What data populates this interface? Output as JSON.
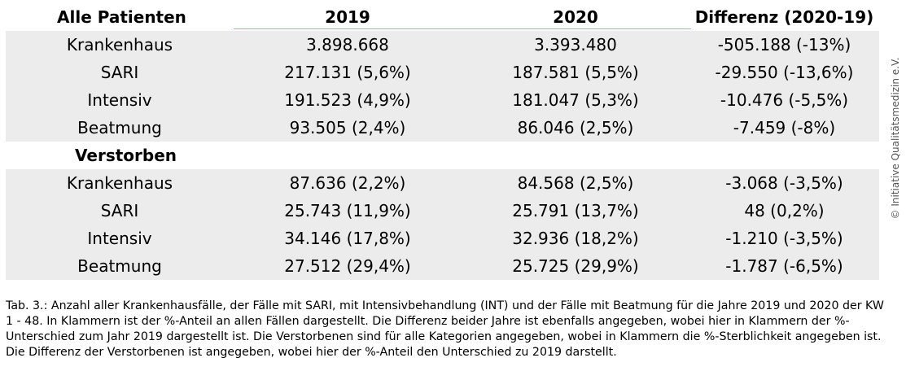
{
  "table": {
    "headers": [
      "Alle Patienten",
      "2019",
      "2020",
      "Differenz (2020-19)"
    ],
    "patients": [
      [
        "Krankenhaus",
        "3.898.668",
        "3.393.480",
        "-505.188 (-13%)"
      ],
      [
        "SARI",
        "217.131 (5,6%)",
        "187.581 (5,5%)",
        "-29.550 (-13,6%)"
      ],
      [
        "Intensiv",
        "191.523 (4,9%)",
        "181.047 (5,3%)",
        "-10.476 (-5,5%)"
      ],
      [
        "Beatmung",
        "93.505 (2,4%)",
        "86.046 (2,5%)",
        "-7.459 (-8%)"
      ]
    ],
    "deceased_label": "Verstorben",
    "deceased": [
      [
        "Krankenhaus",
        "87.636 (2,2%)",
        "84.568 (2,5%)",
        "-3.068 (-3,5%)"
      ],
      [
        "SARI",
        "25.743 (11,9%)",
        "25.791 (13,7%)",
        "48 (0,2%)"
      ],
      [
        "Intensiv",
        "34.146 (17,8%)",
        "32.936 (18,2%)",
        "-1.210 (-3,5%)"
      ],
      [
        "Beatmung",
        "27.512 (29,4%)",
        "25.725 (29,9%)",
        "-1.787 (-6,5%)"
      ]
    ]
  },
  "caption": "Tab. 3.: Anzahl aller Krankenhausfälle, der Fälle mit SARI, mit Intensivbehandlung (INT) und der Fälle mit Beatmung für die Jahre 2019 und 2020 der KW 1 - 48. In Klammern ist der %-Anteil an allen Fällen dargestellt. Die Differenz beider Jahre ist ebenfalls angegeben, wobei hier in Klammern der %-Unterschied zum Jahr 2019 dargestellt ist. Die Verstorbenen sind für alle Kategorien angegeben, wobei in Klammern die %-Sterblichkeit angegeben ist. Die Differenz der Verstorbenen ist angegeben, wobei hier der %-Anteil den Unterschied zu 2019 darstellt.",
  "watermark": "© Initiative Qualitätsmedizin e.V."
}
